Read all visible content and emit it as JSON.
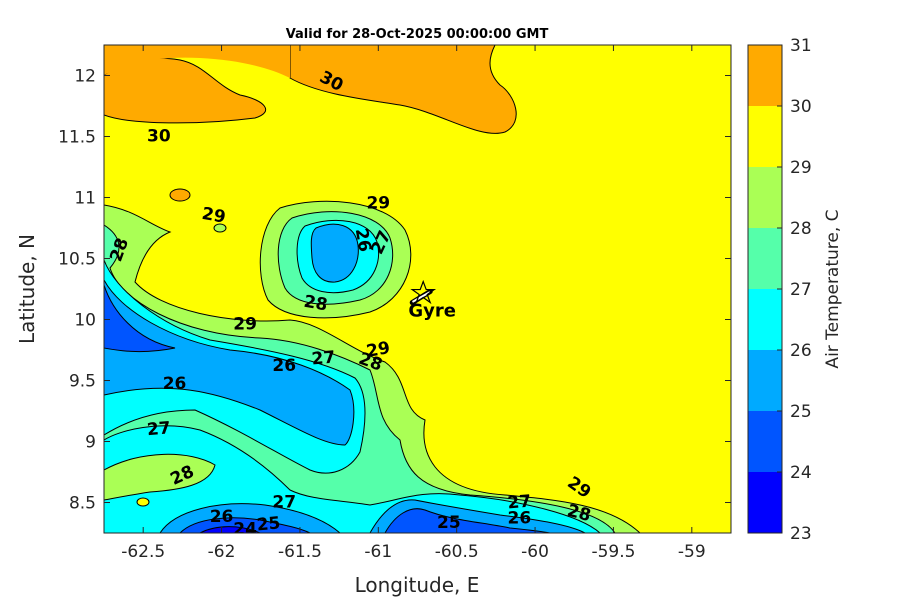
{
  "chart_data": {
    "type": "heatmap",
    "title": "Valid for 28-Oct-2025 00:00:00 GMT",
    "xlabel": "Longitude, E",
    "ylabel": "Latitude, N",
    "xlim": [
      -62.75,
      -58.75
    ],
    "ylim": [
      8.25,
      12.25
    ],
    "xticks": [
      -62.5,
      -62,
      -61.5,
      -61,
      -60.5,
      -60,
      -59.5,
      -59
    ],
    "xtick_labels": [
      "-62.5",
      "-62",
      "-61.5",
      "-61",
      "-60.5",
      "-60",
      "-59.5",
      "-59"
    ],
    "yticks": [
      8.5,
      9,
      9.5,
      10,
      10.5,
      11,
      11.5,
      12
    ],
    "ytick_labels": [
      "8.5",
      "9",
      "9.5",
      "10",
      "10.5",
      "11",
      "11.5",
      "12"
    ],
    "colorbar": {
      "label": "Air Temperature, C",
      "levels": [
        23,
        24,
        25,
        26,
        27,
        28,
        29,
        30,
        31
      ],
      "level_labels": [
        "23",
        "24",
        "25",
        "26",
        "27",
        "28",
        "29",
        "30",
        "31"
      ],
      "colors": [
        "#0000ff",
        "#0055ff",
        "#00aaff",
        "#00ffff",
        "#55ffaa",
        "#aaff55",
        "#ffff00",
        "#ffaa00",
        "#ff5500"
      ]
    },
    "contour_labels": [
      {
        "text": "30",
        "lon": -62.4,
        "lat": 11.5,
        "angle": 0
      },
      {
        "text": "30",
        "lon": -61.3,
        "lat": 11.95,
        "angle": 28
      },
      {
        "text": "29",
        "lon": -62.05,
        "lat": 10.85,
        "angle": 10
      },
      {
        "text": "29",
        "lon": -61.0,
        "lat": 10.95,
        "angle": 0
      },
      {
        "text": "28",
        "lon": -62.65,
        "lat": 10.57,
        "angle": -70
      },
      {
        "text": "26",
        "lon": -61.1,
        "lat": 10.65,
        "angle": 80
      },
      {
        "text": "27",
        "lon": -60.98,
        "lat": 10.63,
        "angle": -65
      },
      {
        "text": "28",
        "lon": -61.4,
        "lat": 10.13,
        "angle": 10
      },
      {
        "text": "29",
        "lon": -61.85,
        "lat": 9.96,
        "angle": 0
      },
      {
        "text": "26",
        "lon": -62.3,
        "lat": 9.47,
        "angle": 0
      },
      {
        "text": "26",
        "lon": -61.6,
        "lat": 9.62,
        "angle": 0
      },
      {
        "text": "27",
        "lon": -61.35,
        "lat": 9.68,
        "angle": -5
      },
      {
        "text": "29",
        "lon": -61.0,
        "lat": 9.75,
        "angle": -10
      },
      {
        "text": "28",
        "lon": -61.05,
        "lat": 9.65,
        "angle": 20
      },
      {
        "text": "27",
        "lon": -62.4,
        "lat": 9.1,
        "angle": -5
      },
      {
        "text": "28",
        "lon": -62.25,
        "lat": 8.72,
        "angle": -25
      },
      {
        "text": "27",
        "lon": -61.6,
        "lat": 8.5,
        "angle": 0
      },
      {
        "text": "26",
        "lon": -62.0,
        "lat": 8.38,
        "angle": 0
      },
      {
        "text": "25",
        "lon": -61.7,
        "lat": 8.32,
        "angle": -5
      },
      {
        "text": "24",
        "lon": -61.85,
        "lat": 8.28,
        "angle": 0
      },
      {
        "text": "25",
        "lon": -60.55,
        "lat": 8.33,
        "angle": 0
      },
      {
        "text": "27",
        "lon": -60.1,
        "lat": 8.5,
        "angle": -5
      },
      {
        "text": "26",
        "lon": -60.1,
        "lat": 8.37,
        "angle": 0
      },
      {
        "text": "29",
        "lon": -59.72,
        "lat": 8.62,
        "angle": 35
      },
      {
        "text": "28",
        "lon": -59.72,
        "lat": 8.41,
        "angle": 15
      }
    ],
    "marker": {
      "label": "Gyre",
      "lon": -60.72,
      "lat": 10.18
    }
  }
}
